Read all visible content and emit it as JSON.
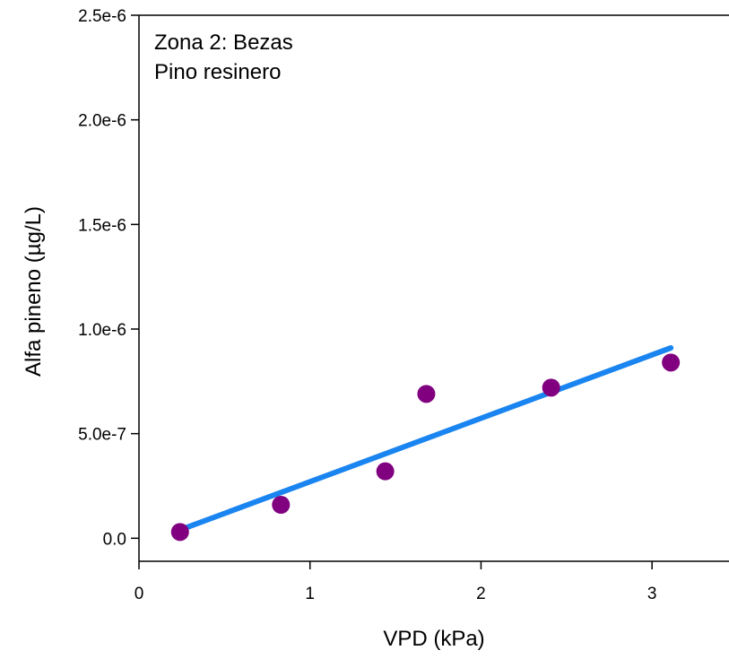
{
  "chart_data": {
    "type": "scatter",
    "title": "",
    "xlabel": "VPD (kPa)",
    "ylabel": "Alfa pineno (µg/L)",
    "xlim": [
      0,
      3.45
    ],
    "ylim": [
      -1.1e-07,
      2.5e-06
    ],
    "x_ticks": [
      0,
      1,
      2,
      3
    ],
    "x_tick_labels": [
      "0",
      "1",
      "2",
      "3"
    ],
    "y_ticks": [
      0,
      5e-07,
      1e-06,
      1.5e-06,
      2e-06,
      2.5e-06
    ],
    "y_tick_labels": [
      "0.0",
      "5.0e-7",
      "1.0e-6",
      "1.5e-6",
      "2.0e-6",
      "2.5e-6"
    ],
    "grid": false,
    "annotations": [
      "Zona 2: Bezas",
      "Pino resinero"
    ],
    "series": [
      {
        "points": [
          {
            "x": 0.24,
            "y": 3e-08
          },
          {
            "x": 0.83,
            "y": 1.6e-07
          },
          {
            "x": 1.44,
            "y": 3.2e-07
          },
          {
            "x": 1.68,
            "y": 6.9e-07
          },
          {
            "x": 2.41,
            "y": 7.2e-07
          },
          {
            "x": 3.11,
            "y": 8.4e-07
          }
        ],
        "marker_color": "#800080"
      }
    ],
    "fit_line": {
      "points": [
        {
          "x": 0.24,
          "y": 4e-08
        },
        {
          "x": 3.11,
          "y": 9.1e-07
        }
      ],
      "color": "#1a85f0"
    },
    "axis_color": "#000000"
  }
}
